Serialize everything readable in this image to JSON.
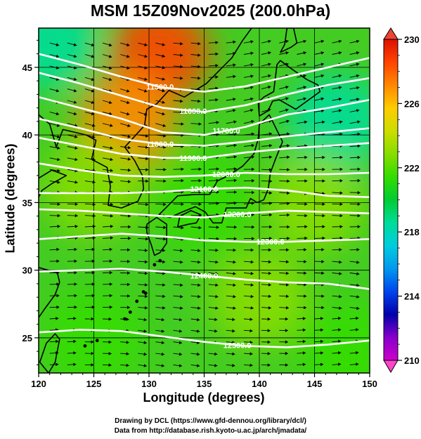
{
  "title": "MSM 15Z09Nov2025 (200.0hPa)",
  "xlabel": "Longitude (degrees)",
  "ylabel": "Latitude  (degrees)",
  "credits": [
    "Drawing by DCL (https://www.gfd-dennou.org/library/dcl/)",
    "Data from http://database.rish.kyoto-u.ac.jp/arch/jmadata/"
  ],
  "x_ticks": [
    "120",
    "125",
    "130",
    "135",
    "140",
    "145",
    "150"
  ],
  "y_ticks": [
    "25",
    "30",
    "35",
    "40",
    "45"
  ],
  "colorbar_ticks": [
    "230",
    "226",
    "222",
    "218",
    "214",
    "210"
  ],
  "contour_labels": [
    "11500.0",
    "11600.0",
    "11700.0",
    "11800.0",
    "11900.0",
    "12000.0",
    "12100.0",
    "12200.0",
    "12300.0",
    "12400.0",
    "12500.0"
  ],
  "colors": {
    "palette": [
      "#cc00cc",
      "#8800cc",
      "#0000aa",
      "#0044ee",
      "#0099ee",
      "#00ccdd",
      "#00dd99",
      "#00cc33",
      "#33dd00",
      "#88dd00",
      "#ccdd00",
      "#ffcc00",
      "#ff8800",
      "#ff4400",
      "#dd1100"
    ],
    "contour": "#ffffff",
    "vector": "#000000",
    "coast": "#000000"
  },
  "map": {
    "lon_range": [
      120,
      150
    ],
    "lat_range": [
      22.4,
      47.9
    ],
    "color_range": [
      210,
      230
    ]
  },
  "chart_data": {
    "type": "heatmap",
    "title": "MSM 15Z09Nov2025 (200.0hPa)",
    "xlabel": "Longitude (degrees)",
    "ylabel": "Latitude  (degrees)",
    "xlim": [
      120,
      150
    ],
    "ylim": [
      22.4,
      47.9
    ],
    "colorbar_range": [
      210,
      230
    ],
    "colorbar_ticks": [
      210,
      214,
      218,
      222,
      226,
      230
    ],
    "field_samples": [
      {
        "lon": 121,
        "lat": 47,
        "value": 219
      },
      {
        "lon": 131,
        "lat": 46,
        "value": 228
      },
      {
        "lon": 128,
        "lat": 41,
        "value": 227
      },
      {
        "lon": 125,
        "lat": 36,
        "value": 223
      },
      {
        "lon": 135,
        "lat": 35,
        "value": 222
      },
      {
        "lon": 147,
        "lat": 41,
        "value": 219
      },
      {
        "lon": 145,
        "lat": 35,
        "value": 223
      },
      {
        "lon": 140,
        "lat": 28,
        "value": 223
      },
      {
        "lon": 125,
        "lat": 25,
        "value": 221
      },
      {
        "lon": 148,
        "lat": 24,
        "value": 221
      }
    ],
    "contours": [
      {
        "value": 11500,
        "lats": [
          46.0,
          45.2,
          44.3,
          43.5,
          43.2,
          43.6,
          44.3,
          45.0,
          45.7
        ]
      },
      {
        "value": 11600,
        "lats": [
          44.6,
          43.8,
          42.9,
          42.0,
          41.7,
          42.2,
          43.0,
          43.7,
          44.2
        ]
      },
      {
        "value": 11700,
        "lats": [
          42.8,
          42.0,
          41.2,
          40.2,
          40.0,
          40.6,
          41.5,
          42.0,
          42.6
        ]
      },
      {
        "value": 11800,
        "lats": [
          41.2,
          40.5,
          39.7,
          39.3,
          39.2,
          39.5,
          39.9,
          40.2,
          40.5
        ]
      },
      {
        "value": 11900,
        "lats": [
          39.8,
          39.2,
          38.6,
          38.3,
          38.3,
          38.7,
          39.0,
          39.2,
          39.4
        ]
      },
      {
        "value": 12000,
        "lats": [
          37.9,
          37.4,
          37.0,
          36.9,
          37.0,
          37.2,
          37.1,
          37.1,
          37.2
        ]
      },
      {
        "value": 12100,
        "lats": [
          35.7,
          35.7,
          35.7,
          35.8,
          36.0,
          36.1,
          35.9,
          35.5,
          35.4
        ]
      },
      {
        "value": 12200,
        "lats": [
          34.5,
          34.4,
          34.2,
          34.0,
          33.9,
          34.2,
          34.4,
          34.3,
          34.2
        ]
      },
      {
        "value": 12300,
        "lats": [
          32.3,
          32.5,
          32.7,
          32.5,
          32.2,
          32.1,
          32.1,
          32.2,
          32.3
        ]
      },
      {
        "value": 12400,
        "lats": [
          29.9,
          30.0,
          30.1,
          29.9,
          29.6,
          29.3,
          29.1,
          29.0,
          28.6
        ]
      },
      {
        "value": 12500,
        "lats": [
          25.4,
          25.6,
          25.5,
          25.1,
          24.7,
          24.4,
          24.3,
          24.5,
          24.8
        ]
      }
    ],
    "contour_lons": [
      120,
      123.75,
      127.5,
      131.25,
      135,
      138.75,
      142.5,
      146.25,
      150
    ],
    "wind": "westerly flow across the domain, strongest between 33N and 40N"
  }
}
